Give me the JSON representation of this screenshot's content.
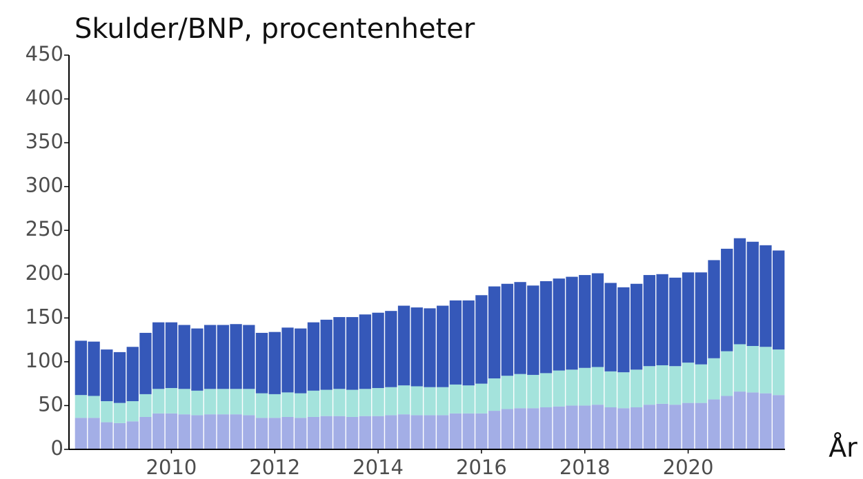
{
  "chart_data": {
    "type": "bar",
    "stacked": true,
    "title": "Skulder/BNP, procentenheter",
    "x_label": "År",
    "categories": [
      null,
      null,
      null,
      null,
      null,
      null,
      null,
      "2010",
      null,
      null,
      null,
      null,
      null,
      null,
      null,
      "2012",
      null,
      null,
      null,
      null,
      null,
      null,
      null,
      "2014",
      null,
      null,
      null,
      null,
      null,
      null,
      null,
      "2016",
      null,
      null,
      null,
      null,
      null,
      null,
      null,
      "2018",
      null,
      null,
      null,
      null,
      null,
      null,
      null,
      "2020",
      null,
      null,
      null,
      null,
      null,
      null,
      null
    ],
    "series": [
      {
        "color": "#a3aee6",
        "values": [
          36,
          36,
          31,
          30,
          32,
          37,
          41,
          41,
          40,
          39,
          40,
          40,
          40,
          39,
          36,
          36,
          37,
          36,
          37,
          38,
          38,
          37,
          38,
          38,
          39,
          40,
          39,
          39,
          39,
          41,
          41,
          41,
          44,
          46,
          47,
          47,
          48,
          49,
          50,
          50,
          51,
          48,
          47,
          48,
          51,
          52,
          51,
          53,
          53,
          57,
          61,
          66,
          65,
          64,
          62
        ]
      },
      {
        "color": "#a4e3dc",
        "values": [
          26,
          25,
          24,
          23,
          23,
          26,
          28,
          29,
          29,
          28,
          29,
          29,
          29,
          30,
          28,
          27,
          28,
          28,
          30,
          30,
          31,
          31,
          31,
          32,
          32,
          33,
          33,
          32,
          32,
          33,
          32,
          34,
          37,
          38,
          39,
          38,
          39,
          41,
          41,
          43,
          43,
          41,
          41,
          43,
          44,
          44,
          44,
          46,
          44,
          47,
          51,
          54,
          53,
          53,
          52
        ]
      },
      {
        "color": "#3558b9",
        "values": [
          62,
          62,
          59,
          58,
          62,
          70,
          76,
          75,
          73,
          71,
          73,
          73,
          74,
          73,
          69,
          71,
          74,
          74,
          78,
          80,
          82,
          83,
          85,
          86,
          87,
          91,
          90,
          90,
          93,
          96,
          97,
          101,
          105,
          105,
          105,
          102,
          105,
          105,
          106,
          106,
          107,
          101,
          97,
          98,
          104,
          104,
          101,
          103,
          105,
          112,
          117,
          121,
          119,
          116,
          113
        ]
      }
    ],
    "ylim": [
      0,
      450
    ],
    "yticks": [
      0,
      50,
      100,
      150,
      200,
      250,
      300,
      350,
      400,
      450
    ]
  }
}
